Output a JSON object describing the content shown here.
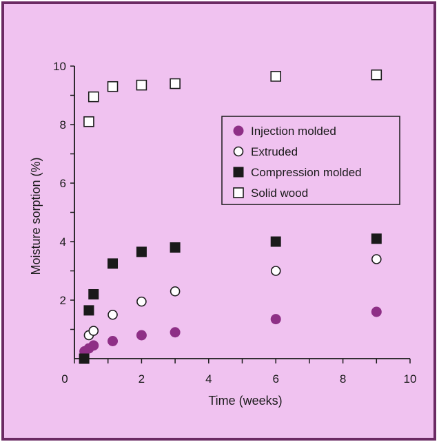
{
  "colors": {
    "background": "#f0c2f0",
    "frame": "#6b2a63",
    "axis": "#1a1a1a",
    "injection": "#8e2f86",
    "marker_dark": "#1a1a1a",
    "marker_open_fill": "#ffffff"
  },
  "chart_data": {
    "type": "scatter",
    "title": "",
    "xlabel": "Time (weeks)",
    "ylabel": "Moisture sorption (%)",
    "xlim": [
      0,
      10
    ],
    "ylim": [
      0,
      10
    ],
    "xticks": [
      0,
      2,
      4,
      6,
      8,
      10
    ],
    "yticks": [
      2,
      4,
      6,
      8,
      10
    ],
    "grid": false,
    "legend_position": "top-right",
    "series": [
      {
        "name": "Injection molded",
        "marker": "filled-circle",
        "color": "#8e2f86",
        "x": [
          0.3,
          0.43,
          0.57,
          1.14,
          2.0,
          3.0,
          6.0,
          9.0
        ],
        "y": [
          0.25,
          0.35,
          0.45,
          0.6,
          0.8,
          0.9,
          1.35,
          1.6
        ]
      },
      {
        "name": "Extruded",
        "marker": "open-circle",
        "color": "#1a1a1a",
        "x": [
          0.43,
          0.57,
          1.14,
          2.0,
          3.0,
          6.0,
          9.0
        ],
        "y": [
          0.8,
          0.95,
          1.5,
          1.95,
          2.3,
          3.0,
          3.4
        ]
      },
      {
        "name": "Compression molded",
        "marker": "filled-square",
        "color": "#1a1a1a",
        "x": [
          0.29,
          0.43,
          0.57,
          1.14,
          2.0,
          3.0,
          6.0,
          9.0
        ],
        "y": [
          0.0,
          1.65,
          2.2,
          3.25,
          3.65,
          3.8,
          4.0,
          4.1
        ]
      },
      {
        "name": "Solid wood",
        "marker": "open-square",
        "color": "#1a1a1a",
        "x": [
          0.43,
          0.57,
          1.14,
          2.0,
          3.0,
          6.0,
          9.0
        ],
        "y": [
          8.1,
          8.95,
          9.3,
          9.35,
          9.4,
          9.65,
          9.7
        ]
      }
    ]
  }
}
